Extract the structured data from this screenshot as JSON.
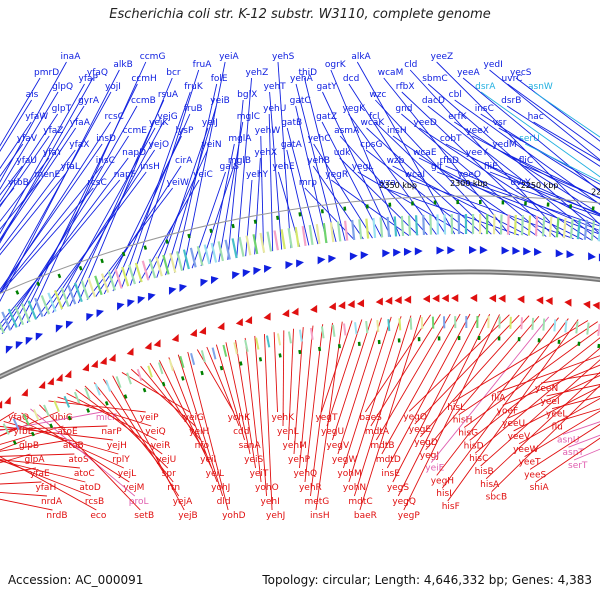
{
  "title": "Escherichia coli str. K-12 substr. W3110, complete genome",
  "footer": {
    "accession": "Accession: AC_000091",
    "topology": "Topology: circular; Length: 4,646,332 bp; Genes: 4,383"
  },
  "colors": {
    "forward": "#1020e0",
    "reverse": "#e01010",
    "rna_fwd": "#22b0e0",
    "rna_rev": "#e060b0",
    "axis": "#888888",
    "tick": "#008000"
  },
  "position_labels": [
    "2050 kbp",
    "2100 kbp",
    "2150 kbp",
    "2200 kbp",
    "2250 kbp",
    "2300 kbp",
    "2350 kbp"
  ],
  "top_genes": [
    "ytbB",
    "yfaU",
    "yfaV",
    "yfaW",
    "ais",
    "pmrD",
    "menE",
    "yfaY",
    "yfaZ",
    "glpT",
    "glpQ",
    "inaA",
    "yfaL",
    "yfaX",
    "yfaA",
    "gyrA",
    "yfaP",
    "yfaQ",
    "rcsC",
    "insC",
    "insD",
    "rcsC",
    "yojI",
    "alkB",
    "napF",
    "napD",
    "ccmE",
    "ccmB",
    "ccmH",
    "ccmG",
    "insH",
    "yejO",
    "yejK",
    "yejG",
    "rsuA",
    "bcr",
    "yeiW",
    "cirA",
    "lysP",
    "fruB",
    "fruK",
    "fruA",
    "yeiC",
    "yeiN",
    "yeiJ",
    "yeiB",
    "folE",
    "yeiA",
    "galS",
    "mglB",
    "mglA",
    "mglC",
    "bglX",
    "yehZ",
    "yehY",
    "yehX",
    "yehW",
    "yehU",
    "yehT",
    "yehS",
    "yehE",
    "gatA",
    "gatB",
    "gatC",
    "yehA",
    "thiD",
    "mrp",
    "yehB",
    "yehC",
    "gatZ",
    "gatY",
    "ogrK",
    "yegR",
    "udk",
    "asmA",
    "yegK",
    "dcd",
    "alkA",
    "yegL",
    "cpsG",
    "wcaK",
    "fcl",
    "wzc",
    "wcaM",
    "wza",
    "wzb",
    "insH",
    "gnd",
    "rfbX",
    "cld",
    "wcaI",
    "wcaE",
    "yeeD",
    "dacD",
    "sbmC",
    "yeeZ",
    "glf",
    "rfbD",
    "cobT",
    "erfK",
    "cbl",
    "yeeA",
    "yeeO",
    "yeeY",
    "yeeX",
    "insC",
    "dsrA",
    "yedI",
    "fliE",
    "yedM",
    "vsr",
    "dsrB",
    "uvrC",
    "yecS",
    "uvrY",
    "fliC",
    "serU",
    "hac",
    "asnW"
  ],
  "bottom_genes": [
    "yfaO",
    "yfbE",
    "glpB",
    "glpA",
    "yfaE",
    "yfaH",
    "nrdA",
    "nrdB",
    "ubiG",
    "atoE",
    "atoB",
    "atoS",
    "atoC",
    "atoD",
    "rcsB",
    "eco",
    "micF",
    "narP",
    "yejH",
    "rplY",
    "yejL",
    "yejM",
    "proL",
    "setB",
    "yeiP",
    "yeiQ",
    "yeiR",
    "yejU",
    "spr",
    "rtn",
    "yejA",
    "yejB",
    "yeiG",
    "yeiH",
    "nfo",
    "yeiI",
    "yeiL",
    "yohJ",
    "dld",
    "yohD",
    "yohK",
    "cdd",
    "sanA",
    "yeiS",
    "yeiT",
    "yohO",
    "yehI",
    "yehJ",
    "yehK",
    "yehL",
    "yehM",
    "yehP",
    "yehQ",
    "yehR",
    "metG",
    "insH",
    "yegT",
    "yegU",
    "yegV",
    "yegW",
    "yohM",
    "yohN",
    "mdtC",
    "baeR",
    "baeS",
    "mdtA",
    "mdtB",
    "mdtD",
    "insE",
    "yegS",
    "yegQ",
    "yegP",
    "yegO",
    "yegE",
    "yegD",
    "yegJ",
    "yeiE",
    "yegH",
    "hisI",
    "hisF",
    "hisL",
    "hisH",
    "hisG",
    "hisD",
    "hisC",
    "hisB",
    "hisA",
    "sbcB",
    "fliA",
    "yoeF",
    "yeeU",
    "yeeV",
    "yeeW",
    "yeeT",
    "yeeS",
    "shiA",
    "yeeN",
    "yeeI",
    "yeeL",
    "flu",
    "asnU",
    "asnT",
    "serT"
  ]
}
